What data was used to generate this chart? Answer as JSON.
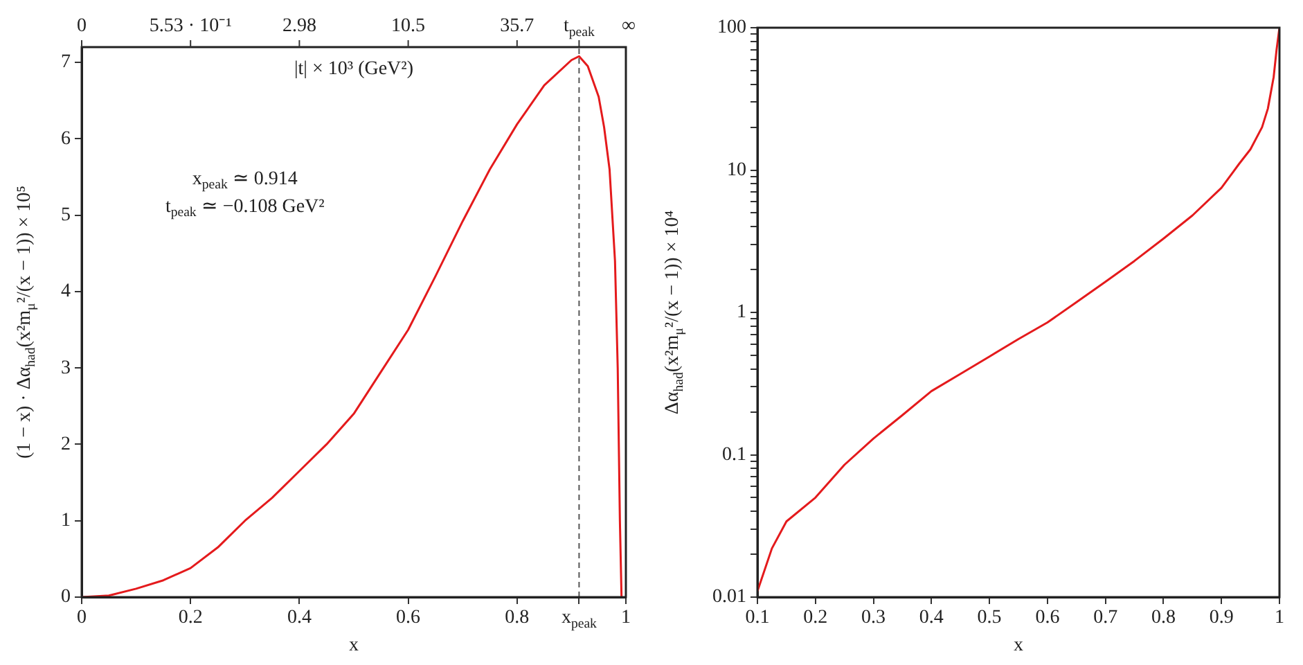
{
  "chart_data": [
    {
      "type": "line",
      "xlabel": "x",
      "ylabel": "(1 − x) · Δα$_{had}$(x²m$_{μ}$²/(x − 1)) × 10⁵",
      "x2label": "|t| × 10³ (GeV²)",
      "series": [
        {
          "color": "#e41a1c",
          "x": [
            0,
            0.05,
            0.1,
            0.15,
            0.2,
            0.25,
            0.3,
            0.35,
            0.4,
            0.45,
            0.5,
            0.55,
            0.6,
            0.65,
            0.7,
            0.75,
            0.8,
            0.85,
            0.9,
            0.914,
            0.93,
            0.95,
            0.96,
            0.97,
            0.98,
            0.985,
            0.989,
            0.992
          ],
          "values": [
            0,
            0.02,
            0.11,
            0.22,
            0.38,
            0.65,
            1.0,
            1.3,
            1.65,
            2.0,
            2.4,
            2.95,
            3.5,
            4.2,
            4.92,
            5.6,
            6.19,
            6.7,
            7.03,
            7.08,
            6.95,
            6.55,
            6.15,
            5.6,
            4.4,
            3.0,
            1.0,
            0
          ]
        }
      ],
      "xlim": [
        0,
        1
      ],
      "xticks": [
        0,
        0.2,
        0.4,
        0.6,
        0.8,
        {
          "value": 0.914,
          "label": "x$_{peak}$"
        },
        1
      ],
      "ylim": [
        0,
        7.2
      ],
      "yticks": [
        0,
        1,
        2,
        3,
        4,
        5,
        6,
        7
      ],
      "ref_lines": [
        {
          "axis": "x",
          "value": 0.914,
          "label": "t$_{peak}$",
          "color": "#555555",
          "line_style": "dashed"
        }
      ],
      "annotations": [
        "x$_{peak}$ ≃ 0.914",
        "t$_{peak}$ ≃ −0.108 GeV²",
        {
          "text": "0",
          "x": 0
        },
        {
          "text": "5.53 · 10⁻¹",
          "x": 0.2
        },
        {
          "text": "2.98",
          "x": 0.4
        },
        {
          "text": "10.5",
          "x": 0.6
        },
        {
          "text": "35.7",
          "x": 0.8
        },
        "∞"
      ]
    },
    {
      "type": "line",
      "xlabel": "x",
      "ylabel": "Δα$_{had}$(x²m$_{μ}$²/(x − 1)) × 10⁴",
      "log": "y",
      "series": [
        {
          "color": "#e41a1c",
          "x": [
            0.1,
            0.125,
            0.15,
            0.2,
            0.25,
            0.3,
            0.35,
            0.4,
            0.45,
            0.5,
            0.55,
            0.6,
            0.65,
            0.7,
            0.75,
            0.8,
            0.85,
            0.9,
            0.93,
            0.95,
            0.97,
            0.98,
            0.99,
            0.995,
            1.0
          ],
          "values": [
            0.011,
            0.022,
            0.034,
            0.05,
            0.085,
            0.13,
            0.19,
            0.28,
            0.37,
            0.49,
            0.65,
            0.85,
            1.18,
            1.64,
            2.3,
            3.3,
            4.8,
            7.5,
            11,
            14,
            20,
            27,
            45,
            70,
            100
          ]
        }
      ],
      "xlim": [
        0.1,
        1
      ],
      "xticks": [
        0.1,
        0.2,
        0.3,
        0.4,
        0.5,
        0.6,
        0.7,
        0.8,
        0.9,
        1
      ],
      "ylim": [
        0.01,
        100
      ],
      "yticks": [
        0.01,
        {
          "value": 0.02,
          "label": null
        },
        {
          "value": 0.03,
          "label": null
        },
        {
          "value": 0.04,
          "label": null
        },
        {
          "value": 0.05,
          "label": null
        },
        {
          "value": 0.06,
          "label": null
        },
        {
          "value": 0.07,
          "label": null
        },
        {
          "value": 0.08,
          "label": null
        },
        {
          "value": 0.09,
          "label": null
        },
        0.1,
        {
          "value": 0.2,
          "label": null
        },
        {
          "value": 0.3,
          "label": null
        },
        {
          "value": 0.4,
          "label": null
        },
        {
          "value": 0.5,
          "label": null
        },
        {
          "value": 0.6,
          "label": null
        },
        {
          "value": 0.7,
          "label": null
        },
        {
          "value": 0.8,
          "label": null
        },
        {
          "value": 0.9,
          "label": null
        },
        1,
        {
          "value": 2,
          "label": null
        },
        {
          "value": 3,
          "label": null
        },
        {
          "value": 4,
          "label": null
        },
        {
          "value": 5,
          "label": null
        },
        {
          "value": 6,
          "label": null
        },
        {
          "value": 7,
          "label": null
        },
        {
          "value": 8,
          "label": null
        },
        {
          "value": 9,
          "label": null
        },
        10,
        {
          "value": 20,
          "label": null
        },
        {
          "value": 30,
          "label": null
        },
        {
          "value": 40,
          "label": null
        },
        {
          "value": 50,
          "label": null
        },
        {
          "value": 60,
          "label": null
        },
        {
          "value": 70,
          "label": null
        },
        {
          "value": 80,
          "label": null
        },
        {
          "value": 90,
          "label": null
        },
        100
      ]
    }
  ]
}
